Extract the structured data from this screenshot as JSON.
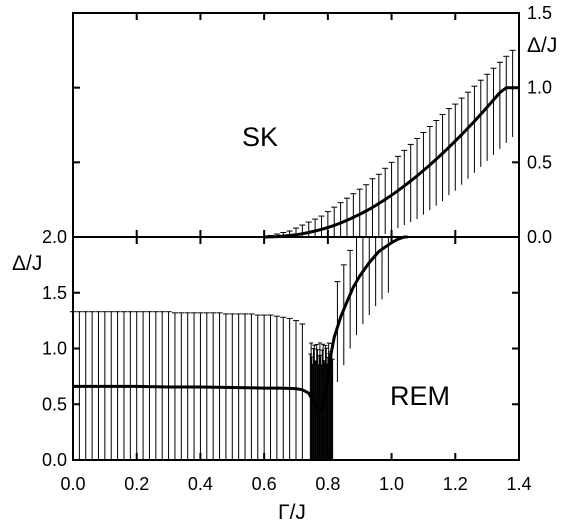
{
  "chart_data": [
    {
      "type": "line",
      "panel": "top",
      "label": "SK",
      "xlabel": "",
      "ylabel": "Δ/J",
      "ylabel_side": "right",
      "xlim": [
        0.0,
        1.4
      ],
      "ylim": [
        0.0,
        1.5
      ],
      "xticks": [
        0.0,
        0.2,
        0.4,
        0.6,
        0.8,
        1.0,
        1.2,
        1.4
      ],
      "yticks_right": [
        0.0,
        0.5,
        1.0,
        1.5
      ],
      "yticks_right_labels": [
        "0.0",
        "0.5",
        "1.0",
        "1.5"
      ],
      "grid": false,
      "legend": "none",
      "curve": {
        "x": [
          0.6,
          0.62,
          0.64,
          0.66,
          0.68,
          0.7,
          0.72,
          0.74,
          0.76,
          0.78,
          0.8,
          0.82,
          0.84,
          0.86,
          0.88,
          0.9,
          0.92,
          0.94,
          0.96,
          0.98,
          1.0,
          1.02,
          1.04,
          1.06,
          1.08,
          1.1,
          1.12,
          1.14,
          1.16,
          1.18,
          1.2,
          1.22,
          1.24,
          1.26,
          1.28,
          1.3,
          1.32,
          1.34,
          1.36,
          1.38,
          1.4
        ],
        "y": [
          0.0,
          0.001,
          0.003,
          0.006,
          0.01,
          0.015,
          0.022,
          0.03,
          0.04,
          0.051,
          0.064,
          0.078,
          0.094,
          0.112,
          0.131,
          0.152,
          0.174,
          0.198,
          0.224,
          0.251,
          0.28,
          0.31,
          0.342,
          0.375,
          0.409,
          0.445,
          0.482,
          0.52,
          0.56,
          0.601,
          0.643,
          0.686,
          0.73,
          0.775,
          0.822,
          0.869,
          0.918,
          0.967,
          1.0,
          1.0,
          1.0
        ]
      },
      "errorbars": {
        "x": [
          0.62,
          0.64,
          0.66,
          0.68,
          0.7,
          0.72,
          0.74,
          0.76,
          0.78,
          0.8,
          0.82,
          0.84,
          0.86,
          0.88,
          0.9,
          0.92,
          0.94,
          0.96,
          0.98,
          1.0,
          1.02,
          1.04,
          1.06,
          1.08,
          1.1,
          1.12,
          1.14,
          1.16,
          1.18,
          1.2,
          1.22,
          1.24,
          1.26,
          1.28,
          1.3,
          1.32,
          1.34,
          1.36,
          1.38
        ],
        "lower": [
          0.0,
          0.0,
          0.0,
          0.0,
          0.0,
          0.0,
          0.0,
          0.0,
          0.0,
          0.0,
          0.0,
          0.0,
          0.0,
          0.0,
          0.0,
          0.0,
          0.0,
          0.0,
          0.02,
          0.04,
          0.06,
          0.08,
          0.1,
          0.12,
          0.15,
          0.18,
          0.21,
          0.24,
          0.28,
          0.31,
          0.35,
          0.39,
          0.43,
          0.47,
          0.51,
          0.55,
          0.59,
          0.63,
          0.67
        ],
        "upper": [
          0.01,
          0.02,
          0.03,
          0.04,
          0.06,
          0.08,
          0.1,
          0.12,
          0.14,
          0.17,
          0.2,
          0.23,
          0.26,
          0.29,
          0.32,
          0.35,
          0.39,
          0.42,
          0.46,
          0.5,
          0.54,
          0.58,
          0.62,
          0.66,
          0.7,
          0.74,
          0.78,
          0.82,
          0.86,
          0.89,
          0.93,
          0.97,
          1.01,
          1.05,
          1.09,
          1.13,
          1.17,
          1.21,
          1.25
        ]
      }
    },
    {
      "type": "line",
      "panel": "bottom",
      "label": "REM",
      "xlabel": "Γ/J",
      "ylabel": "Δ/J",
      "ylabel_side": "left",
      "xlim": [
        0.0,
        1.4
      ],
      "ylim": [
        0.0,
        2.0
      ],
      "xticks": [
        0.0,
        0.2,
        0.4,
        0.6,
        0.8,
        1.0,
        1.2,
        1.4
      ],
      "xtick_labels": [
        "0.0",
        "0.2",
        "0.4",
        "0.6",
        "0.8",
        "1.0",
        "1.2",
        "1.4"
      ],
      "yticks_left": [
        0.0,
        0.5,
        1.0,
        1.5,
        2.0
      ],
      "yticks_left_labels": [
        "0.0",
        "0.5",
        "1.0",
        "1.5",
        "2.0"
      ],
      "grid": false,
      "legend": "none",
      "curve": {
        "x": [
          0.0,
          0.05,
          0.1,
          0.2,
          0.3,
          0.4,
          0.5,
          0.6,
          0.65,
          0.7,
          0.72,
          0.74,
          0.75,
          0.76,
          0.77,
          0.78,
          0.79,
          0.8,
          0.81,
          0.82,
          0.84,
          0.86,
          0.88,
          0.9,
          0.93,
          0.96,
          1.0,
          1.02,
          1.04,
          1.05
        ],
        "y": [
          0.66,
          0.66,
          0.66,
          0.66,
          0.655,
          0.655,
          0.65,
          0.645,
          0.645,
          0.64,
          0.63,
          0.6,
          0.55,
          0.5,
          0.45,
          0.45,
          0.55,
          0.75,
          0.95,
          1.1,
          1.28,
          1.42,
          1.55,
          1.65,
          1.77,
          1.87,
          1.95,
          1.98,
          2.0,
          2.0
        ]
      },
      "errorbars_plateau": {
        "x_from": 0.0,
        "x_to": 0.72,
        "spacing": 0.02,
        "lower": 0.0,
        "upper": [
          1.33,
          1.33,
          1.33,
          1.33,
          1.33,
          1.33,
          1.33,
          1.33,
          1.33,
          1.33,
          1.33,
          1.33,
          1.33,
          1.33,
          1.33,
          1.33,
          1.32,
          1.32,
          1.32,
          1.32,
          1.32,
          1.32,
          1.32,
          1.32,
          1.31,
          1.31,
          1.31,
          1.31,
          1.31,
          1.3,
          1.3,
          1.3,
          1.29,
          1.28,
          1.27,
          1.25,
          1.22
        ]
      },
      "errorbars_dense": {
        "x_from": 0.745,
        "x_to": 0.815,
        "spacing": 0.0025,
        "lower": 0.0,
        "upper_min": 0.85,
        "upper_max": 1.05
      },
      "errorbars_rising": {
        "x": [
          0.83,
          0.85,
          0.87,
          0.89,
          0.91,
          0.93,
          0.95,
          0.97,
          0.99
        ],
        "lower": [
          0.7,
          0.85,
          1.0,
          1.12,
          1.22,
          1.3,
          1.38,
          1.44,
          1.5
        ],
        "upper": [
          1.6,
          1.75,
          1.88,
          2.0,
          2.0,
          2.0,
          2.0,
          2.0,
          2.0
        ]
      }
    }
  ]
}
